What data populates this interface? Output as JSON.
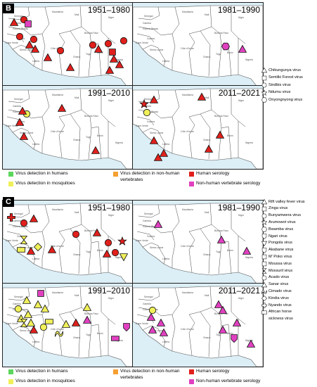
{
  "panel_b": {
    "letter": "B",
    "periods": [
      "1951–1980",
      "1981–1990",
      "1991–2010",
      "2011–2021"
    ],
    "virus_legend": [
      {
        "label": "Chikungunya virus",
        "icon": "triangle-icon"
      },
      {
        "label": "Semliki Forest virus",
        "icon": "square-icon"
      },
      {
        "label": "Sindbis virus",
        "icon": "circle-icon"
      },
      {
        "label": "Ndumu virus",
        "icon": "star-icon"
      },
      {
        "label": "Onyongnyong virus",
        "icon": "hexagon-icon"
      }
    ]
  },
  "panel_c": {
    "letter": "C",
    "periods": [
      "1951–1980",
      "1981–1990",
      "1991–2010",
      "2011–2021"
    ],
    "virus_legend": [
      {
        "label": "Rift valley fever virus",
        "icon": "triangle-icon"
      },
      {
        "label": "Zinga virus",
        "icon": "square-icon"
      },
      {
        "label": "Bunyamwera virus",
        "icon": "circle-icon"
      },
      {
        "label": "Arumowot virus",
        "icon": "star-icon"
      },
      {
        "label": "Bwamba virus",
        "icon": "hexagon-icon"
      },
      {
        "label": "Ngari virus",
        "icon": "shield-icon"
      },
      {
        "label": "Pongola virus",
        "icon": "down-triangle-icon"
      },
      {
        "label": "Akabane virus",
        "icon": "flag-icon"
      },
      {
        "label": "M' Poko virus",
        "icon": "bracket-icon"
      },
      {
        "label": "Moussa virus",
        "icon": "rounded-square-icon"
      },
      {
        "label": "Mossuril virus",
        "icon": "hourglass-icon"
      },
      {
        "label": "Acado virus",
        "icon": "leaf-icon"
      },
      {
        "label": "Sanar virus",
        "icon": "arrow-icon"
      },
      {
        "label": "Cimado virus",
        "icon": "wave-icon"
      },
      {
        "label": "Kindia virus",
        "icon": "diamond-icon"
      },
      {
        "label": "Nyando virus",
        "icon": "cross-icon"
      },
      {
        "label": "African horse",
        "icon": "rectangle-icon"
      },
      {
        "label": "sickness virus",
        "icon": ""
      }
    ]
  },
  "detection_key": {
    "humans": "Virus detection in humans",
    "non_human_vertebrates_1": "Virus detection in non-human",
    "non_human_vertebrates_2": "vertebrates",
    "human_serology": "Human serology",
    "mosquitoes": "Virus detection in mosquitoes",
    "non_human_serology": "Non-human vertebrate serology"
  },
  "colors": {
    "humans": "#5cd65c",
    "mosquitoes": "#f0f05a",
    "non_human_vertebrates": "#f5a030",
    "human_serology": "#e0201c",
    "non_human_serology": "#e040c0",
    "land": "#ffffff",
    "sea": "#dceef6",
    "border": "#444444"
  },
  "map_labels": [
    "Mauritania",
    "Mali",
    "Niger",
    "Senegal",
    "Gambia",
    "Guinea-Bissau",
    "Guinea",
    "Burkina Faso",
    "Sierra Leone",
    "Liberia",
    "Côte d'Ivoire",
    "Ghana",
    "Togo",
    "Benin",
    "Nigeria",
    "Cape Verde"
  ],
  "markers": {
    "b1": [
      [
        "triangle",
        "#e0201c",
        16,
        28
      ],
      [
        "circle",
        "#e0201c",
        30,
        24
      ],
      [
        "square",
        "#e040c0",
        36,
        30
      ],
      [
        "circle",
        "#e0201c",
        24,
        48
      ],
      [
        "circle",
        "#e0201c",
        44,
        52
      ],
      [
        "triangle",
        "#e0201c",
        38,
        60
      ],
      [
        "triangle",
        "#e0201c",
        46,
        66
      ],
      [
        "triangle",
        "#e0201c",
        64,
        78
      ],
      [
        "circle",
        "#e0201c",
        82,
        68
      ],
      [
        "triangle",
        "#e0201c",
        96,
        92
      ],
      [
        "circle",
        "#e0201c",
        128,
        60
      ],
      [
        "triangle",
        "#e0201c",
        136,
        66
      ],
      [
        "circle",
        "#e0201c",
        150,
        58
      ],
      [
        "square",
        "#e0201c",
        156,
        70
      ],
      [
        "triangle",
        "#e0201c",
        158,
        80
      ],
      [
        "circle",
        "#e0201c",
        172,
        54
      ],
      [
        "triangle",
        "#e0201c",
        166,
        88
      ],
      [
        "triangle",
        "#e0201c",
        152,
        96
      ]
    ],
    "b2": [
      [
        "hexagon",
        "#e040c0",
        132,
        62
      ],
      [
        "triangle",
        "#e040c0",
        156,
        66
      ]
    ],
    "b3": [
      [
        "circle",
        "#f0f05a",
        34,
        40
      ],
      [
        "triangle",
        "#e0201c",
        28,
        36
      ],
      [
        "triangle",
        "#e0201c",
        24,
        52
      ],
      [
        "triangle",
        "#e0201c",
        30,
        72
      ],
      [
        "triangle",
        "#e0201c",
        84,
        32
      ],
      [
        "triangle",
        "#e0201c",
        132,
        92
      ]
    ],
    "b4": [
      [
        "star",
        "#e0201c",
        16,
        26
      ],
      [
        "triangle",
        "#e0201c",
        30,
        20
      ],
      [
        "circle",
        "#f0f05a",
        20,
        38
      ],
      [
        "triangle",
        "#e0201c",
        98,
        16
      ],
      [
        "triangle",
        "#e0201c",
        30,
        78
      ],
      [
        "triangle",
        "#e0201c",
        44,
        96
      ],
      [
        "triangle",
        "#e0201c",
        36,
        102
      ],
      [
        "triangle",
        "#e0201c",
        124,
        70
      ],
      [
        "triangle",
        "#e0201c",
        108,
        90
      ]
    ],
    "c1": [
      [
        "cross",
        "#e0201c",
        12,
        24
      ],
      [
        "circle",
        "#e0201c",
        30,
        32
      ],
      [
        "triangle",
        "#e0201c",
        44,
        26
      ],
      [
        "hourglass",
        "#f0f05a",
        30,
        56
      ],
      [
        "rect",
        "#f0f05a",
        26,
        70
      ],
      [
        "diamond",
        "#f0f05a",
        50,
        66
      ],
      [
        "triangle",
        "#e0201c",
        40,
        72
      ],
      [
        "triangle",
        "#e0201c",
        70,
        70
      ],
      [
        "circle",
        "#e0201c",
        104,
        48
      ],
      [
        "triangle",
        "#e0201c",
        134,
        46
      ],
      [
        "circle",
        "#e0201c",
        150,
        60
      ],
      [
        "star",
        "#e0201c",
        170,
        58
      ],
      [
        "circle",
        "#e0201c",
        160,
        74
      ],
      [
        "triangle",
        "#e0201c",
        148,
        76
      ],
      [
        "down",
        "#f0f05a",
        172,
        80
      ]
    ],
    "c2": [
      [
        "triangle",
        "#e040c0",
        36,
        34
      ],
      [
        "triangle",
        "#e040c0",
        126,
        56
      ],
      [
        "triangle",
        "#e040c0",
        162,
        72
      ]
    ],
    "c3": [
      [
        "square",
        "#e040c0",
        54,
        14
      ],
      [
        "triangle",
        "#f0f05a",
        34,
        24
      ],
      [
        "triangle",
        "#f0f05a",
        50,
        30
      ],
      [
        "triangle",
        "#f0f05a",
        60,
        36
      ],
      [
        "circle",
        "#f0f05a",
        22,
        36
      ],
      [
        "triangle",
        "#f0f05a",
        36,
        44
      ],
      [
        "triangle",
        "#f0f05a",
        26,
        50
      ],
      [
        "hourglass",
        "#f0f05a",
        30,
        56
      ],
      [
        "triangle",
        "#f0f05a",
        40,
        56
      ],
      [
        "triangle",
        "#e0201c",
        44,
        66
      ],
      [
        "circle",
        "#f0f05a",
        58,
        62
      ],
      [
        "rect",
        "#f0f05a",
        66,
        54
      ],
      [
        "triangle",
        "#f0f05a",
        90,
        58
      ],
      [
        "wave",
        "#f0f05a",
        80,
        70
      ],
      [
        "triangle",
        "#e0201c",
        104,
        56
      ],
      [
        "triangle",
        "#f0f05a",
        120,
        34
      ],
      [
        "triangle",
        "#e040c0",
        120,
        52
      ],
      [
        "flag",
        "#e040c0",
        176,
        62
      ],
      [
        "rect",
        "#e040c0",
        160,
        78
      ]
    ],
    "c4": [
      [
        "triangle",
        "#e040c0",
        122,
        30
      ],
      [
        "triangle",
        "#e040c0",
        128,
        38
      ],
      [
        "circle",
        "#f0f05a",
        28,
        38
      ],
      [
        "triangle",
        "#e040c0",
        26,
        48
      ],
      [
        "triangle",
        "#e040c0",
        40,
        56
      ],
      [
        "triangle",
        "#e040c0",
        28,
        66
      ],
      [
        "triangle",
        "#e040c0",
        44,
        70
      ],
      [
        "triangle",
        "#e040c0",
        128,
        66
      ],
      [
        "triangle",
        "#e040c0",
        148,
        56
      ],
      [
        "flag",
        "#e040c0",
        144,
        78
      ],
      [
        "triangle",
        "#e040c0",
        168,
        86
      ]
    ]
  }
}
